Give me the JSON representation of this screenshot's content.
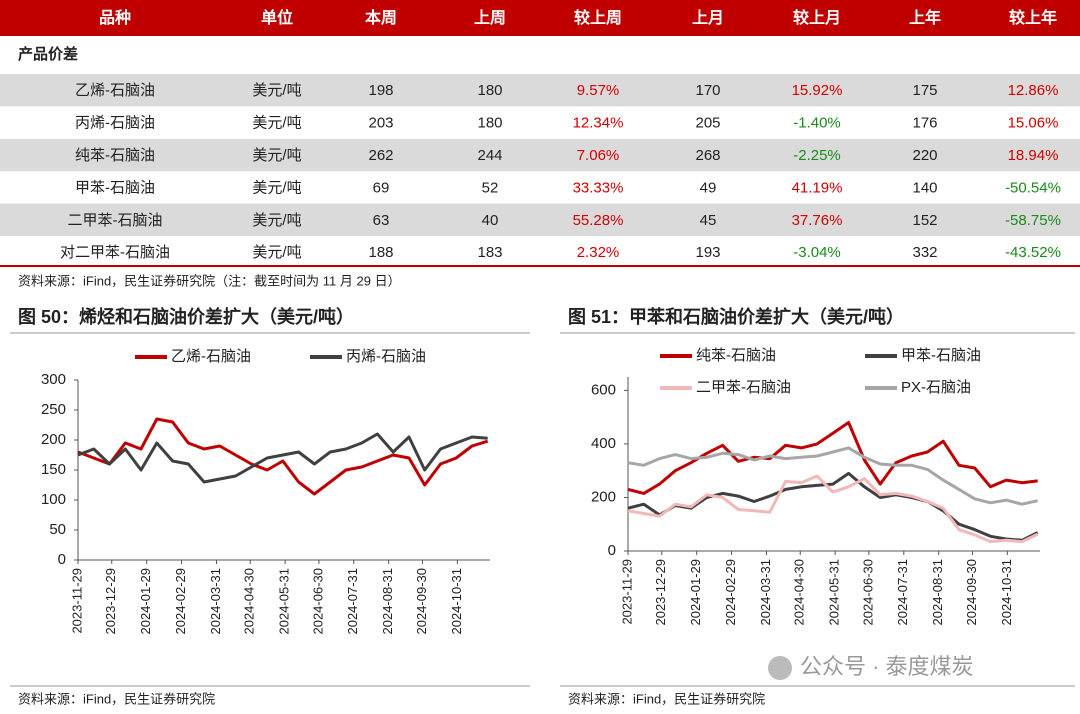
{
  "table": {
    "headers": [
      "品种",
      "单位",
      "本周",
      "上周",
      "较上周",
      "上月",
      "较上月",
      "上年",
      "较上年"
    ],
    "section": "产品价差",
    "rows": [
      [
        "乙烯-石脑油",
        "美元/吨",
        "198",
        "180",
        "9.57%",
        "170",
        "15.92%",
        "175",
        "12.86%"
      ],
      [
        "丙烯-石脑油",
        "美元/吨",
        "203",
        "180",
        "12.34%",
        "205",
        "-1.40%",
        "176",
        "15.06%"
      ],
      [
        "纯苯-石脑油",
        "美元/吨",
        "262",
        "244",
        "7.06%",
        "268",
        "-2.25%",
        "220",
        "18.94%"
      ],
      [
        "甲苯-石脑油",
        "美元/吨",
        "69",
        "52",
        "33.33%",
        "49",
        "41.19%",
        "140",
        "-50.54%"
      ],
      [
        "二甲苯-石脑油",
        "美元/吨",
        "63",
        "40",
        "55.28%",
        "45",
        "37.76%",
        "152",
        "-58.75%"
      ],
      [
        "对二甲苯-石脑油",
        "美元/吨",
        "188",
        "183",
        "2.32%",
        "193",
        "-3.04%",
        "332",
        "-43.52%"
      ]
    ]
  },
  "table_source": "资料来源：iFind，民生证券研究院（注：截至时间为 11 月 29 日）",
  "watermark": "公众号 · 泰度煤炭",
  "chart_data": [
    {
      "type": "line",
      "title": "图 50：烯烃和石脑油价差扩大（美元/吨）",
      "source": "资料来源：iFind，民生证券研究院",
      "xlim": [
        "2023-11-29",
        "2024-11-29"
      ],
      "xticks": [
        "2023-11-29",
        "2023-12-29",
        "2024-01-29",
        "2024-02-29",
        "2024-03-31",
        "2024-04-30",
        "2024-05-31",
        "2024-06-30",
        "2024-07-31",
        "2024-08-31",
        "2024-09-30",
        "2024-10-31"
      ],
      "ylim": [
        0,
        300
      ],
      "yticks": [
        0,
        50,
        100,
        150,
        200,
        250,
        300
      ],
      "x": [
        "2023-11-29",
        "2023-12-13",
        "2023-12-27",
        "2024-01-10",
        "2024-01-24",
        "2024-02-07",
        "2024-02-21",
        "2024-03-06",
        "2024-03-20",
        "2024-04-03",
        "2024-04-17",
        "2024-05-01",
        "2024-05-15",
        "2024-05-29",
        "2024-06-12",
        "2024-06-26",
        "2024-07-10",
        "2024-07-24",
        "2024-08-07",
        "2024-08-21",
        "2024-09-04",
        "2024-09-18",
        "2024-10-02",
        "2024-10-16",
        "2024-10-30",
        "2024-11-13",
        "2024-11-27"
      ],
      "series": [
        {
          "name": "乙烯-石脑油",
          "color": "#c00000",
          "values": [
            180,
            170,
            160,
            195,
            185,
            235,
            230,
            195,
            185,
            190,
            175,
            160,
            150,
            165,
            130,
            110,
            130,
            150,
            155,
            165,
            175,
            170,
            125,
            160,
            170,
            190,
            198
          ]
        },
        {
          "name": "丙烯-石脑油",
          "color": "#404040",
          "values": [
            175,
            185,
            160,
            185,
            150,
            195,
            165,
            160,
            130,
            135,
            140,
            155,
            170,
            175,
            180,
            160,
            180,
            185,
            195,
            210,
            180,
            205,
            150,
            185,
            195,
            205,
            203
          ]
        }
      ]
    },
    {
      "type": "line",
      "title": "图 51：甲苯和石脑油价差扩大（美元/吨）",
      "source": "资料来源：iFind，民生证券研究院",
      "xlim": [
        "2023-11-29",
        "2024-11-29"
      ],
      "xticks": [
        "2023-11-29",
        "2023-12-29",
        "2024-01-29",
        "2024-02-29",
        "2024-03-31",
        "2024-04-30",
        "2024-05-31",
        "2024-06-30",
        "2024-07-31",
        "2024-08-31",
        "2024-09-30",
        "2024-10-31"
      ],
      "ylim": [
        0,
        650
      ],
      "yticks": [
        0,
        200,
        400,
        600
      ],
      "x": [
        "2023-11-29",
        "2023-12-13",
        "2023-12-27",
        "2024-01-10",
        "2024-01-24",
        "2024-02-07",
        "2024-02-21",
        "2024-03-06",
        "2024-03-20",
        "2024-04-03",
        "2024-04-17",
        "2024-05-01",
        "2024-05-15",
        "2024-05-29",
        "2024-06-12",
        "2024-06-26",
        "2024-07-10",
        "2024-07-24",
        "2024-08-07",
        "2024-08-21",
        "2024-09-04",
        "2024-09-18",
        "2024-10-02",
        "2024-10-16",
        "2024-10-30",
        "2024-11-13",
        "2024-11-27"
      ],
      "series": [
        {
          "name": "纯苯-石脑油",
          "color": "#c00000",
          "values": [
            230,
            215,
            250,
            300,
            330,
            365,
            395,
            335,
            350,
            345,
            395,
            385,
            400,
            440,
            480,
            340,
            250,
            330,
            355,
            370,
            410,
            320,
            310,
            240,
            265,
            255,
            262
          ]
        },
        {
          "name": "甲苯-石脑油",
          "color": "#404040",
          "values": [
            160,
            175,
            135,
            170,
            160,
            200,
            215,
            205,
            185,
            205,
            230,
            240,
            245,
            250,
            290,
            240,
            200,
            210,
            200,
            185,
            150,
            100,
            80,
            55,
            45,
            40,
            69
          ]
        },
        {
          "name": "二甲苯-石脑油",
          "color": "#f2b8b8",
          "values": [
            150,
            140,
            130,
            175,
            165,
            210,
            200,
            155,
            150,
            145,
            260,
            255,
            280,
            220,
            240,
            270,
            210,
            215,
            205,
            185,
            160,
            80,
            60,
            35,
            40,
            35,
            63
          ]
        },
        {
          "name": "PX-石脑油",
          "color": "#a6a6a6",
          "values": [
            330,
            320,
            345,
            360,
            345,
            350,
            365,
            360,
            340,
            355,
            345,
            350,
            355,
            370,
            385,
            350,
            325,
            320,
            320,
            305,
            265,
            230,
            195,
            180,
            190,
            175,
            188
          ]
        }
      ]
    }
  ]
}
